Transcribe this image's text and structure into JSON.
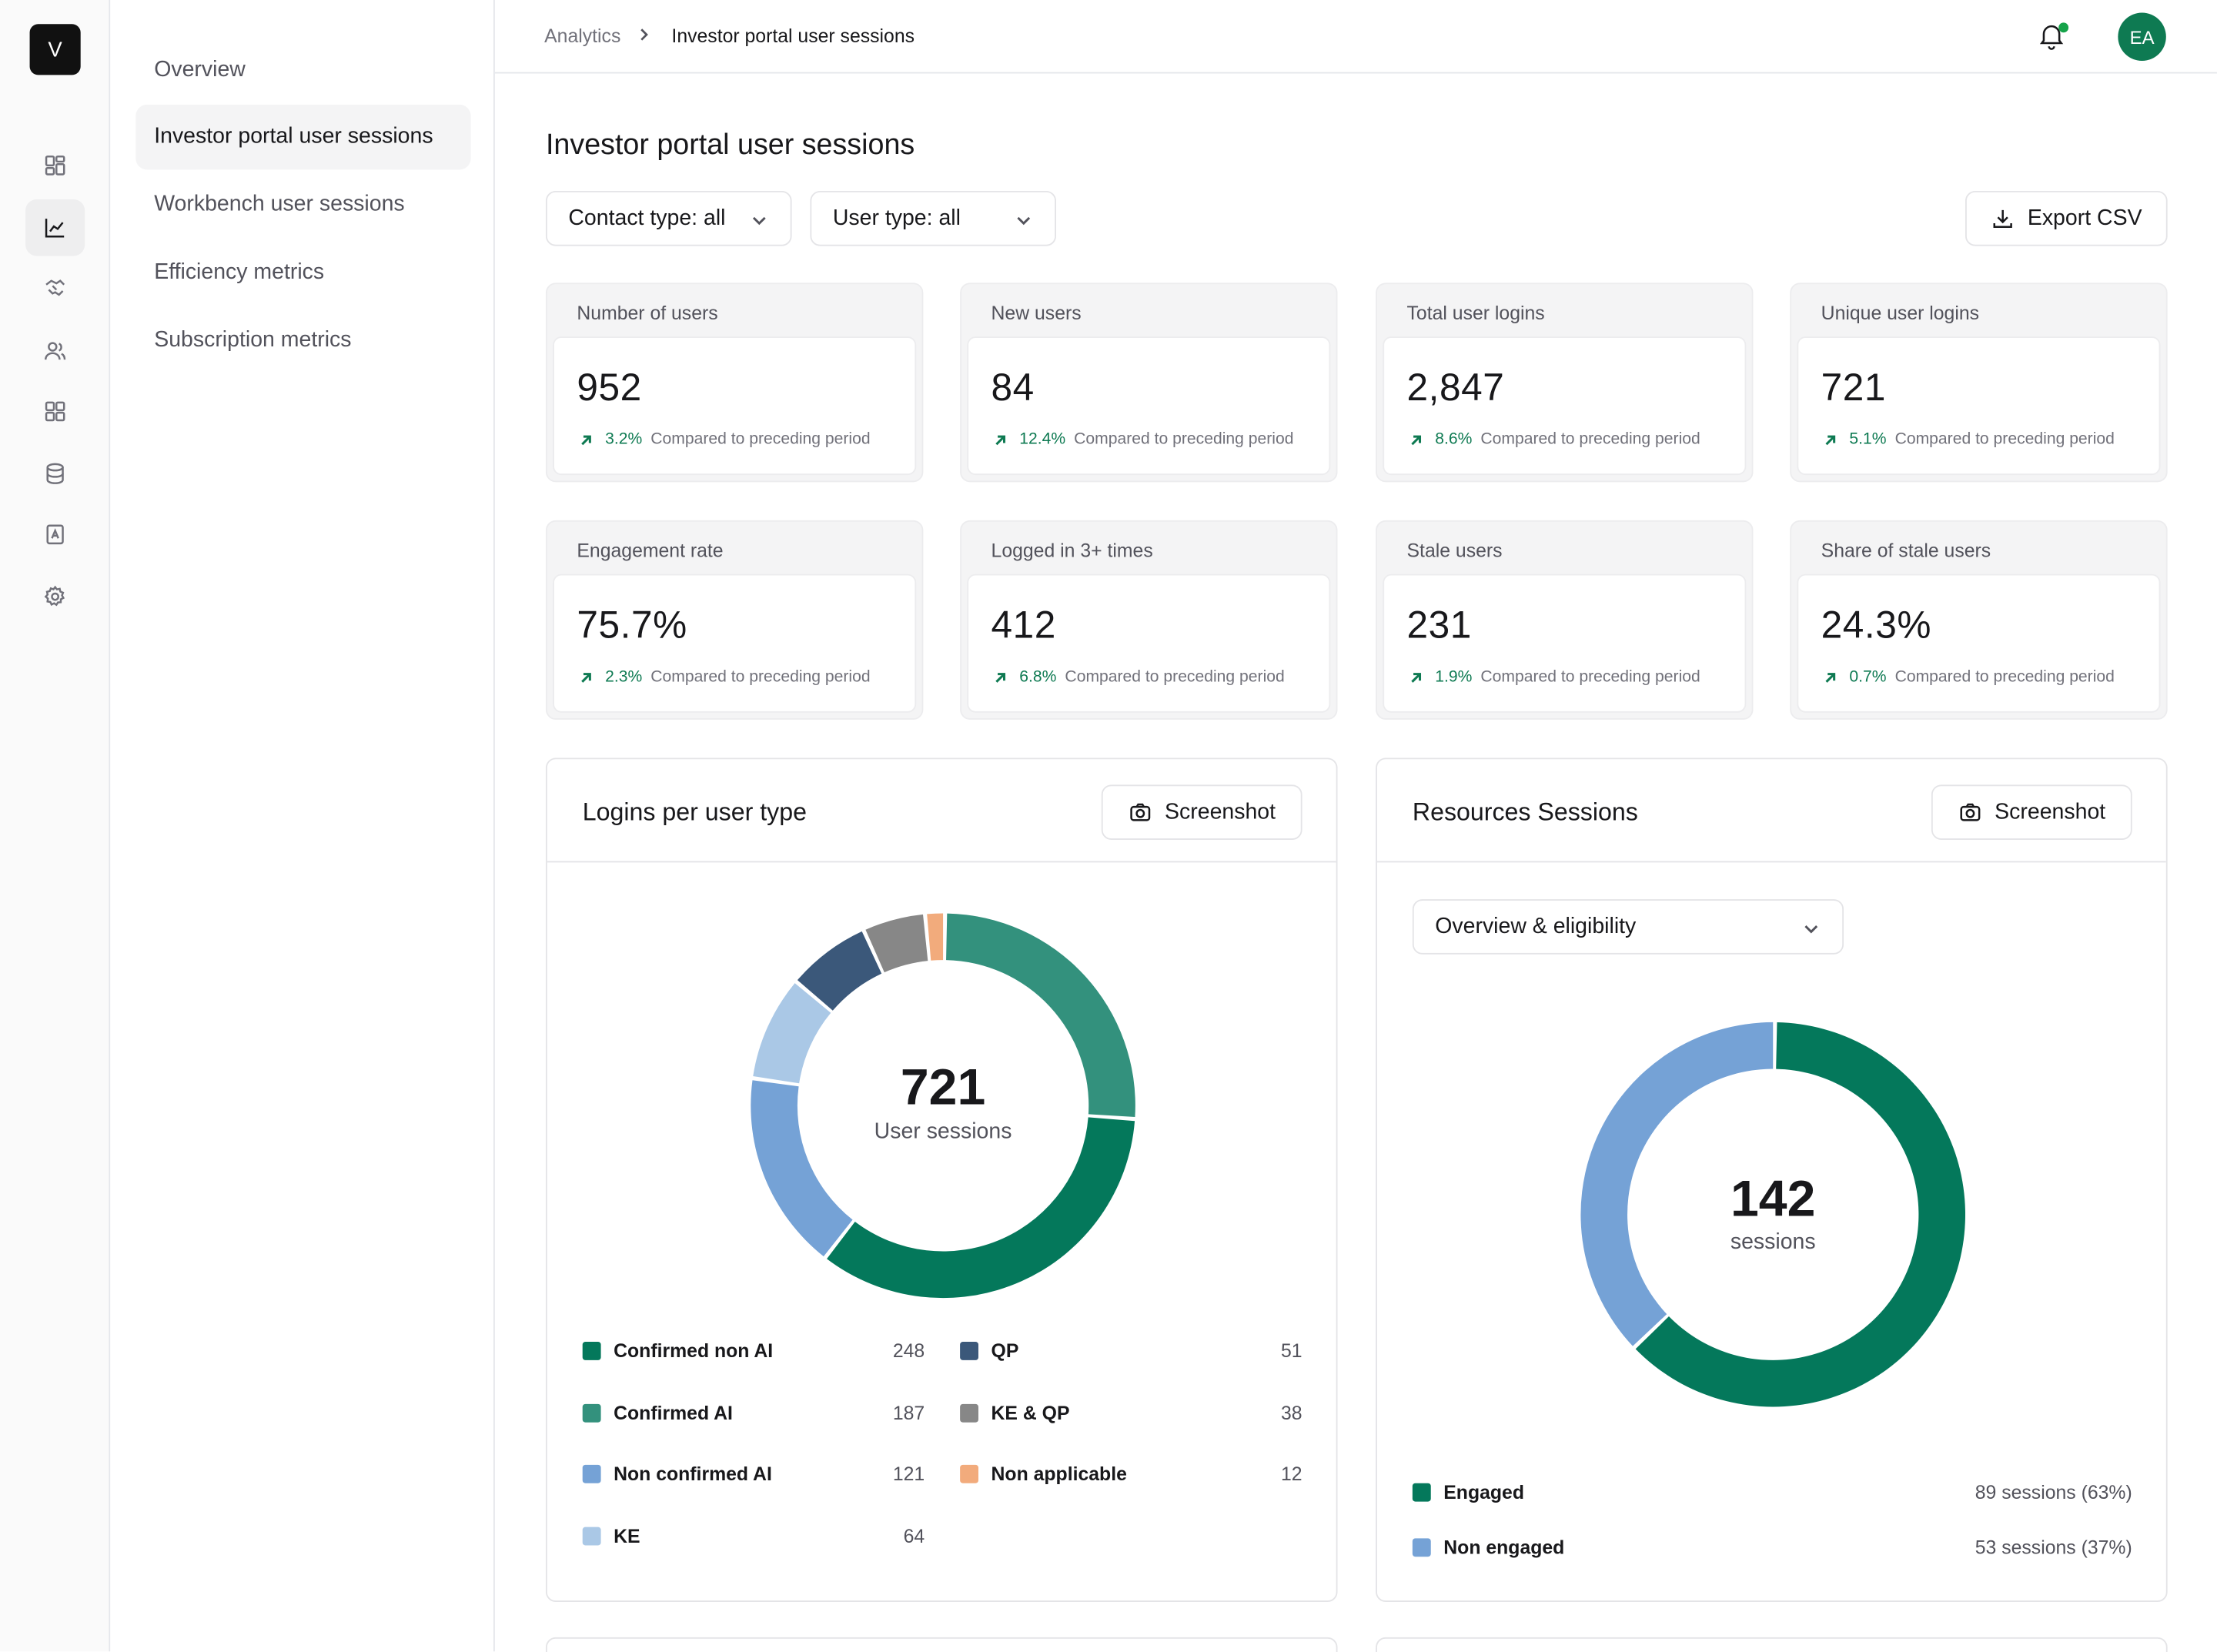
{
  "app": {
    "logo_letter": "V"
  },
  "rail": {
    "icons": [
      "dashboard-icon",
      "chart-line-icon",
      "handshake-icon",
      "users-icon",
      "grid-icon",
      "database-icon",
      "contact-book-icon",
      "gear-icon"
    ],
    "active_index": 1
  },
  "subnav": {
    "items": [
      {
        "label": "Overview"
      },
      {
        "label": "Investor portal user sessions"
      },
      {
        "label": "Workbench user sessions"
      },
      {
        "label": "Efficiency metrics"
      },
      {
        "label": "Subscription metrics"
      }
    ],
    "active_index": 1
  },
  "header": {
    "breadcrumb_root": "Analytics",
    "breadcrumb_sep": ">",
    "breadcrumb_current": "Investor portal user sessions",
    "avatar_initials": "EA",
    "accent_color": "#0e7a52"
  },
  "page": {
    "title": "Investor portal user sessions",
    "filters": {
      "contact_type": "Contact type: all",
      "user_type": "User type: all"
    },
    "export_label": "Export CSV"
  },
  "stats": [
    {
      "label": "Number of users",
      "value": "952",
      "delta": "3.2%",
      "compare": "Compared to preceding period"
    },
    {
      "label": "New users",
      "value": "84",
      "delta": "12.4%",
      "compare": "Compared to preceding period"
    },
    {
      "label": "Total user logins",
      "value": "2,847",
      "delta": "8.6%",
      "compare": "Compared to preceding period"
    },
    {
      "label": "Unique user logins",
      "value": "721",
      "delta": "5.1%",
      "compare": "Compared to preceding period"
    },
    {
      "label": "Engagement rate",
      "value": "75.7%",
      "delta": "2.3%",
      "compare": "Compared to preceding period"
    },
    {
      "label": "Logged in 3+ times",
      "value": "412",
      "delta": "6.8%",
      "compare": "Compared to preceding period"
    },
    {
      "label": "Stale users",
      "value": "231",
      "delta": "1.9%",
      "compare": "Compared to preceding period"
    },
    {
      "label": "Share of stale users",
      "value": "24.3%",
      "delta": "0.7%",
      "compare": "Compared to preceding period"
    }
  ],
  "logins_panel": {
    "title": "Logins per user type",
    "screenshot_label": "Screenshot",
    "center_value": "721",
    "center_label": "User sessions",
    "segments": [
      {
        "name": "Confirmed non AI",
        "value": 248,
        "color": "#04785b"
      },
      {
        "name": "Confirmed AI",
        "value": 187,
        "color": "#33917d"
      },
      {
        "name": "Non confirmed AI",
        "value": 121,
        "color": "#75a2d6"
      },
      {
        "name": "KE",
        "value": 64,
        "color": "#aac8e6"
      },
      {
        "name": "QP",
        "value": 51,
        "color": "#3b587a"
      },
      {
        "name": "KE & QP",
        "value": 38,
        "color": "#878787"
      },
      {
        "name": "Non applicable",
        "value": 12,
        "color": "#f2ab7c"
      }
    ]
  },
  "resources_panel": {
    "title": "Resources Sessions",
    "screenshot_label": "Screenshot",
    "dropdown_value": "Overview & eligibility",
    "center_value": "142",
    "center_label": "sessions",
    "segments": [
      {
        "name": "Engaged",
        "value": 89,
        "display": "89 sessions (63%)",
        "color": "#04785b"
      },
      {
        "name": "Non engaged",
        "value": 53,
        "display": "53 sessions (37%)",
        "color": "#75a2d6"
      }
    ]
  }
}
